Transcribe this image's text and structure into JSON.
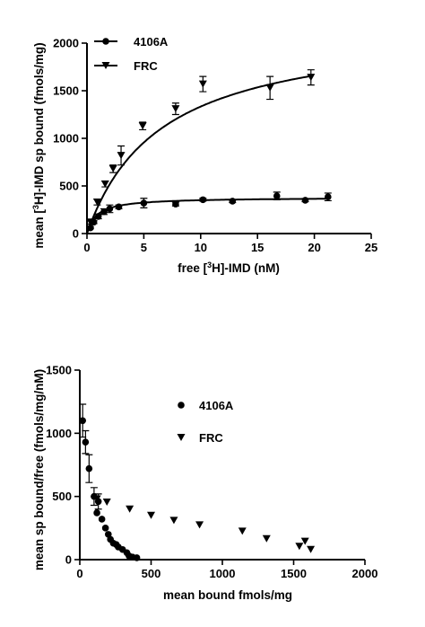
{
  "chart_data": [
    {
      "type": "line",
      "xlabel_parts": [
        "free [",
        "3",
        "H]-IMD (nM)"
      ],
      "ylabel_parts": [
        "mean [",
        "3",
        "H]-IMD sp bound (fmols/mg)"
      ],
      "xlim": [
        0,
        25
      ],
      "ylim": [
        0,
        2000
      ],
      "xticks": [
        0,
        5,
        10,
        15,
        20,
        25
      ],
      "yticks": [
        0,
        500,
        1000,
        1500,
        2000
      ],
      "xtick_labels": [
        "0",
        "5",
        "10",
        "15",
        "20",
        "25"
      ],
      "ytick_labels": [
        "0",
        "500",
        "1000",
        "1500",
        "2000"
      ],
      "legend_position": "top-left",
      "series": [
        {
          "name": "4106A",
          "marker": "circle",
          "points": [
            {
              "x": 0.3,
              "y": 60,
              "err": 10
            },
            {
              "x": 0.6,
              "y": 120,
              "err": 15
            },
            {
              "x": 1.0,
              "y": 180,
              "err": 25
            },
            {
              "x": 1.5,
              "y": 230,
              "err": 30
            },
            {
              "x": 2.0,
              "y": 260,
              "err": 40
            },
            {
              "x": 2.8,
              "y": 280,
              "err": 20
            },
            {
              "x": 5.0,
              "y": 320,
              "err": 50
            },
            {
              "x": 7.8,
              "y": 310,
              "err": 20
            },
            {
              "x": 10.2,
              "y": 355,
              "err": 15
            },
            {
              "x": 12.8,
              "y": 340,
              "err": 15
            },
            {
              "x": 16.7,
              "y": 395,
              "err": 40
            },
            {
              "x": 19.2,
              "y": 350,
              "err": 15
            },
            {
              "x": 21.2,
              "y": 385,
              "err": 40
            }
          ],
          "fit": {
            "bmax": 380,
            "kd": 0.85
          }
        },
        {
          "name": "FRC",
          "marker": "triangle-down",
          "points": [
            {
              "x": 0.3,
              "y": 120,
              "err": 20
            },
            {
              "x": 0.9,
              "y": 330,
              "err": 30
            },
            {
              "x": 1.6,
              "y": 520,
              "err": 30
            },
            {
              "x": 2.3,
              "y": 680,
              "err": 40
            },
            {
              "x": 3.0,
              "y": 820,
              "err": 100
            },
            {
              "x": 4.9,
              "y": 1130,
              "err": 40
            },
            {
              "x": 7.8,
              "y": 1310,
              "err": 60
            },
            {
              "x": 10.2,
              "y": 1570,
              "err": 80
            },
            {
              "x": 16.1,
              "y": 1530,
              "err": 120
            },
            {
              "x": 19.7,
              "y": 1640,
              "err": 80
            }
          ],
          "fit": {
            "bmax": 2200,
            "kd": 6.5
          }
        }
      ]
    },
    {
      "type": "scatter",
      "xlabel": "mean bound fmols/mg",
      "ylabel": "mean sp bound/free (fmols/mg/nM)",
      "xlim": [
        0,
        2000
      ],
      "ylim": [
        0,
        1500
      ],
      "xticks": [
        0,
        500,
        1000,
        1500,
        2000
      ],
      "yticks": [
        0,
        500,
        1000,
        1500
      ],
      "xtick_labels": [
        "0",
        "500",
        "1000",
        "1500",
        "2000"
      ],
      "ytick_labels": [
        "0",
        "500",
        "1000",
        "1500"
      ],
      "legend_position": "top-center",
      "series": [
        {
          "name": "4106A",
          "marker": "circle",
          "points": [
            {
              "x": 20,
              "y": 1100,
              "err": 130
            },
            {
              "x": 40,
              "y": 930,
              "err": 90
            },
            {
              "x": 65,
              "y": 720,
              "err": 110
            },
            {
              "x": 100,
              "y": 500,
              "err": 70
            },
            {
              "x": 130,
              "y": 460,
              "err": 60
            },
            {
              "x": 120,
              "y": 370
            },
            {
              "x": 155,
              "y": 320
            },
            {
              "x": 180,
              "y": 250
            },
            {
              "x": 200,
              "y": 200
            },
            {
              "x": 215,
              "y": 160
            },
            {
              "x": 235,
              "y": 130
            },
            {
              "x": 255,
              "y": 120
            },
            {
              "x": 270,
              "y": 100
            },
            {
              "x": 300,
              "y": 80
            },
            {
              "x": 330,
              "y": 55
            },
            {
              "x": 345,
              "y": 30
            },
            {
              "x": 370,
              "y": 20
            },
            {
              "x": 400,
              "y": 15
            }
          ]
        },
        {
          "name": "FRC",
          "marker": "triangle-down",
          "points": [
            {
              "x": 120,
              "y": 480
            },
            {
              "x": 190,
              "y": 455
            },
            {
              "x": 350,
              "y": 400
            },
            {
              "x": 500,
              "y": 350
            },
            {
              "x": 660,
              "y": 310
            },
            {
              "x": 840,
              "y": 275
            },
            {
              "x": 1140,
              "y": 225
            },
            {
              "x": 1310,
              "y": 165
            },
            {
              "x": 1540,
              "y": 105
            },
            {
              "x": 1580,
              "y": 145
            },
            {
              "x": 1620,
              "y": 80
            }
          ]
        }
      ]
    }
  ]
}
